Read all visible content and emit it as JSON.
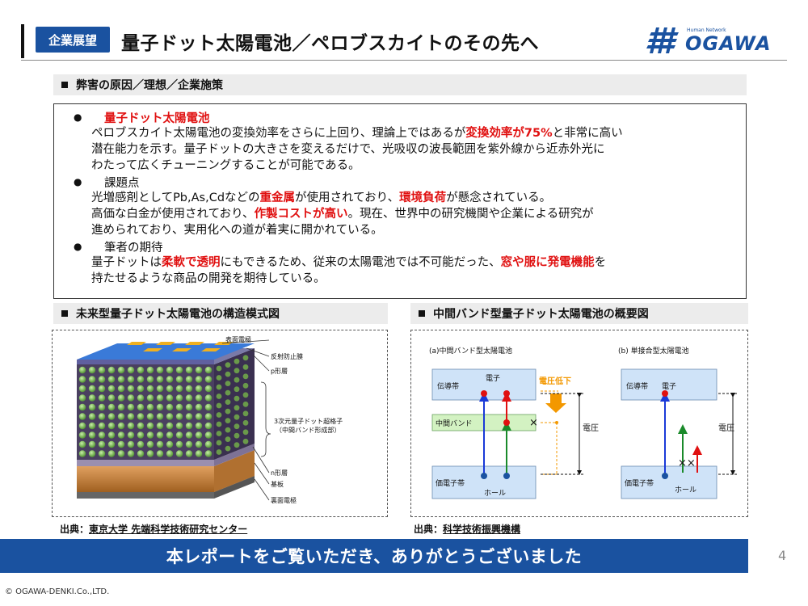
{
  "header": {
    "badge": "企業展望",
    "title": "量子ドット太陽電池／ペロブスカイトのその先へ",
    "logo_small": "Human Network",
    "logo_main": "OGAWA"
  },
  "section1": {
    "title": "弊害の原因／理想／企業施策"
  },
  "points": {
    "p1_head": "量子ドット太陽電池",
    "p1_l1a": "ペロブスカイト太陽電池の変換効率をさらに上回り、理論上ではあるが",
    "p1_l1b": "変換効率が75%",
    "p1_l1c": "と非常に高い",
    "p1_l2": "潜在能力を示す。量子ドットの大きさを変えるだけで、光吸収の波長範囲を紫外線から近赤外光に",
    "p1_l3": "わたって広くチューニングすることが可能である。",
    "p2_head": "課題点",
    "p2_l1a": "光増感剤としてPb,As,Cdなどの",
    "p2_l1b": "重金属",
    "p2_l1c": "が使用されており、",
    "p2_l1d": "環境負荷",
    "p2_l1e": "が懸念されている。",
    "p2_l2a": "高価な白金が使用されており、",
    "p2_l2b": "作製コストが高い",
    "p2_l2c": "。現在、世界中の研究機関や企業による研究が",
    "p2_l3": "進められており、実用化への道が着実に開かれている。",
    "p3_head": "筆者の期待",
    "p3_l1a": "量子ドットは",
    "p3_l1b": "柔軟で透明",
    "p3_l1c": "にもできるため、従来の太陽電池では不可能だった、",
    "p3_l1d": "窓や服に発電機能",
    "p3_l1e": "を",
    "p3_l2": "持たせるような商品の開発を期待している。"
  },
  "fig_left": {
    "title": "未来型量子ドット太陽電池の構造模式図",
    "labels": {
      "surface_electrode": "表面電極",
      "anti_reflection": "反射防止膜",
      "p_layer": "p形層",
      "qd_superlattice_1": "3次元量子ドット超格子",
      "qd_superlattice_2": "（中間バンド形成部）",
      "n_layer": "n形層",
      "substrate": "基板",
      "back_electrode": "裏面電極"
    },
    "source_label": "出典：",
    "source_name": "東京大学 先端科学技術研究センター"
  },
  "fig_right": {
    "title": "中間バンド型量子ドット太陽電池の概要図",
    "panel_a": "(a)中間バンド型太陽電池",
    "panel_b": "(b) 単接合型太陽電池",
    "conduction_band": "伝導帯",
    "intermediate_band": "中間バンド",
    "valence_band": "価電子帯",
    "electron": "電子",
    "hole": "ホール",
    "voltage": "電圧",
    "voltage_drop": "電圧低下",
    "cross": "×",
    "double_cross": "××",
    "source_label": "出典：",
    "source_name": "科学技術振興機構"
  },
  "footer": {
    "banner": "本レポートをご覧いただき、ありがとうございました",
    "page": "4",
    "copyright": "© OGAWA-DENKI.Co.,LTD."
  },
  "colors": {
    "brand_blue": "#1a52a0",
    "accent_red": "#e01010",
    "band_blue": "#cfe3f8",
    "band_green": "#d3f2c2",
    "arrow_orange": "#f39800"
  }
}
